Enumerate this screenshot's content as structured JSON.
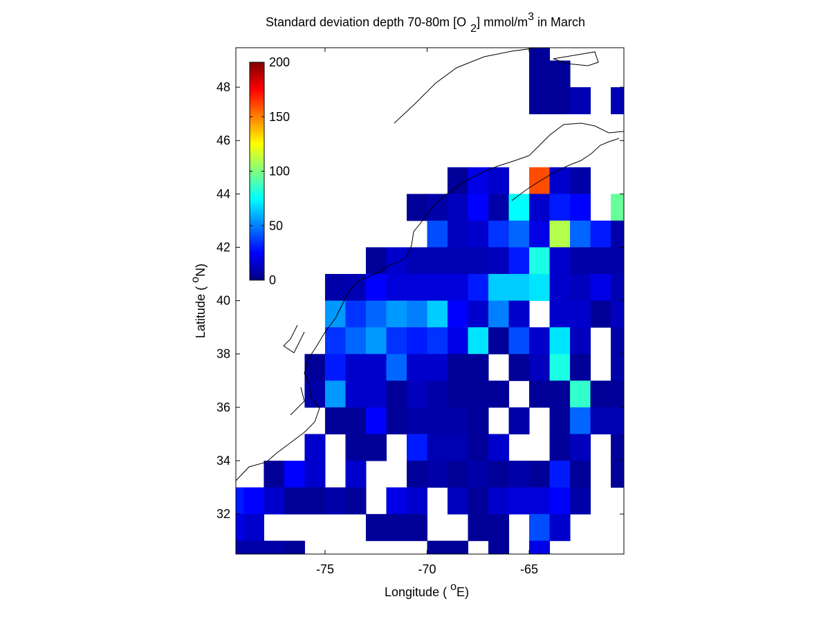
{
  "chart_data": {
    "type": "heatmap",
    "title": [
      "Standard deviation depth 70-80m [O",
      "2",
      "] mmol/m",
      "3",
      " in March"
    ],
    "xlabel": [
      "Longitude ( ",
      "o",
      "E)"
    ],
    "ylabel": [
      "Latitude ( ",
      "o",
      "N)"
    ],
    "colormap": "jet",
    "clim": [
      0,
      200
    ],
    "cticks": [
      0,
      50,
      100,
      150,
      200
    ],
    "xlim": [
      -79.37,
      -60.36
    ],
    "ylim": [
      30.5,
      49.48
    ],
    "xticks": [
      -75,
      -70,
      -65
    ],
    "yticks": [
      32,
      34,
      36,
      38,
      40,
      42,
      44,
      46,
      48
    ],
    "lon": [
      -79.5,
      -78.5,
      -77.5,
      -76.5,
      -75.5,
      -74.5,
      -73.5,
      -72.5,
      -71.5,
      -70.5,
      -69.5,
      -68.5,
      -67.5,
      -66.5,
      -65.5,
      -64.5,
      -63.5,
      -62.5,
      -61.5,
      -60.5
    ],
    "lat": [
      49.5,
      48.5,
      47.5,
      46.5,
      45.5,
      44.5,
      43.5,
      42.5,
      41.5,
      40.5,
      39.5,
      38.5,
      37.5,
      36.5,
      35.5,
      34.5,
      33.5,
      32.5,
      31.5,
      30.5
    ],
    "z": [
      [
        null,
        null,
        null,
        null,
        null,
        null,
        null,
        null,
        null,
        null,
        null,
        null,
        null,
        null,
        null,
        5,
        null,
        null,
        null,
        null
      ],
      [
        null,
        null,
        null,
        null,
        null,
        null,
        null,
        null,
        null,
        null,
        null,
        null,
        null,
        null,
        null,
        5,
        5,
        null,
        null,
        null
      ],
      [
        null,
        null,
        null,
        null,
        null,
        null,
        null,
        null,
        null,
        null,
        null,
        null,
        null,
        null,
        null,
        5,
        5,
        10,
        null,
        10
      ],
      [
        null,
        null,
        null,
        null,
        null,
        null,
        null,
        null,
        null,
        null,
        null,
        null,
        null,
        null,
        null,
        null,
        null,
        null,
        null,
        null
      ],
      [
        null,
        null,
        null,
        null,
        null,
        null,
        null,
        null,
        null,
        null,
        null,
        null,
        null,
        null,
        null,
        null,
        null,
        null,
        null,
        null
      ],
      [
        null,
        null,
        null,
        null,
        null,
        null,
        null,
        null,
        null,
        null,
        null,
        5,
        20,
        15,
        null,
        160,
        15,
        8,
        null,
        null
      ],
      [
        null,
        null,
        null,
        null,
        null,
        null,
        null,
        null,
        null,
        5,
        8,
        12,
        25,
        8,
        75,
        15,
        30,
        25,
        null,
        95
      ],
      [
        null,
        null,
        null,
        null,
        null,
        null,
        null,
        null,
        null,
        null,
        40,
        12,
        15,
        35,
        45,
        20,
        110,
        45,
        30,
        8
      ],
      [
        null,
        null,
        null,
        null,
        null,
        null,
        null,
        5,
        15,
        10,
        10,
        10,
        10,
        12,
        30,
        80,
        15,
        8,
        8,
        8
      ],
      [
        null,
        null,
        null,
        null,
        null,
        8,
        10,
        25,
        18,
        18,
        18,
        18,
        30,
        65,
        65,
        70,
        15,
        12,
        20,
        10
      ],
      [
        null,
        null,
        null,
        null,
        null,
        55,
        35,
        45,
        55,
        50,
        65,
        25,
        15,
        50,
        15,
        null,
        15,
        15,
        5,
        12
      ],
      [
        null,
        null,
        null,
        null,
        null,
        35,
        45,
        55,
        35,
        30,
        35,
        20,
        70,
        5,
        40,
        15,
        70,
        12,
        null,
        8
      ],
      [
        null,
        null,
        null,
        null,
        5,
        30,
        15,
        15,
        45,
        15,
        15,
        5,
        5,
        null,
        5,
        12,
        80,
        5,
        null,
        8
      ],
      [
        null,
        null,
        null,
        null,
        8,
        55,
        15,
        15,
        5,
        12,
        8,
        5,
        5,
        5,
        null,
        5,
        5,
        85,
        5,
        5
      ],
      [
        null,
        null,
        null,
        null,
        null,
        5,
        5,
        25,
        5,
        8,
        8,
        8,
        5,
        null,
        8,
        null,
        5,
        45,
        10,
        10
      ],
      [
        null,
        null,
        null,
        null,
        15,
        null,
        5,
        5,
        null,
        30,
        10,
        10,
        5,
        15,
        null,
        null,
        5,
        12,
        null,
        5
      ],
      [
        null,
        null,
        5,
        25,
        15,
        null,
        15,
        null,
        null,
        5,
        8,
        5,
        8,
        5,
        8,
        5,
        30,
        5,
        null,
        5
      ],
      [
        30,
        25,
        15,
        5,
        5,
        8,
        5,
        null,
        20,
        15,
        null,
        12,
        5,
        15,
        18,
        18,
        25,
        8,
        null,
        null
      ],
      [
        20,
        15,
        null,
        null,
        null,
        null,
        null,
        5,
        5,
        5,
        null,
        null,
        5,
        5,
        null,
        40,
        15,
        null,
        null,
        null
      ],
      [
        8,
        8,
        8,
        5,
        null,
        null,
        null,
        null,
        null,
        null,
        5,
        5,
        null,
        5,
        null,
        20,
        null,
        null,
        null,
        null
      ]
    ]
  }
}
